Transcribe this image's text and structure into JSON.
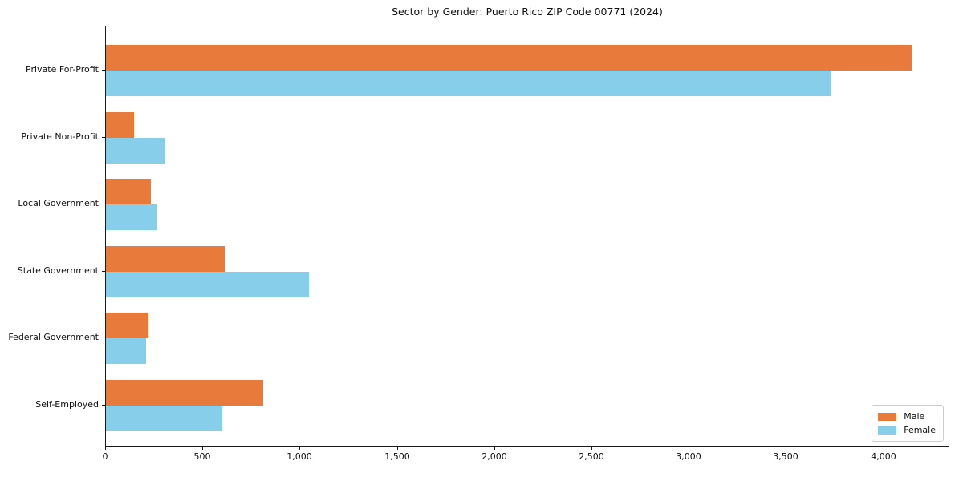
{
  "chart_data": {
    "type": "bar",
    "orientation": "horizontal",
    "title": "Sector by Gender: Puerto Rico ZIP Code 00771 (2024)",
    "categories": [
      "Private For-Profit",
      "Private Non-Profit",
      "Local Government",
      "State Government",
      "Federal Government",
      "Self-Employed"
    ],
    "series": [
      {
        "name": "Male",
        "color": "#E87A3C",
        "values": [
          4140,
          145,
          230,
          610,
          220,
          810
        ]
      },
      {
        "name": "Female",
        "color": "#87CEEB",
        "values": [
          3725,
          300,
          265,
          1045,
          205,
          600
        ]
      }
    ],
    "xlabel": "",
    "ylabel": "",
    "xlim": [
      0,
      4340
    ],
    "xticks": [
      0,
      500,
      1000,
      1500,
      2000,
      2500,
      3000,
      3500,
      4000
    ],
    "xtick_labels": [
      "0",
      "500",
      "1,000",
      "1,500",
      "2,000",
      "2,500",
      "3,000",
      "3,500",
      "4,000"
    ],
    "grid": false,
    "legend": {
      "position": "lower right",
      "entries": [
        "Male",
        "Female"
      ]
    },
    "colors": {
      "spine": "#1a1a1a",
      "text": "#111111",
      "background": "#ffffff"
    }
  }
}
